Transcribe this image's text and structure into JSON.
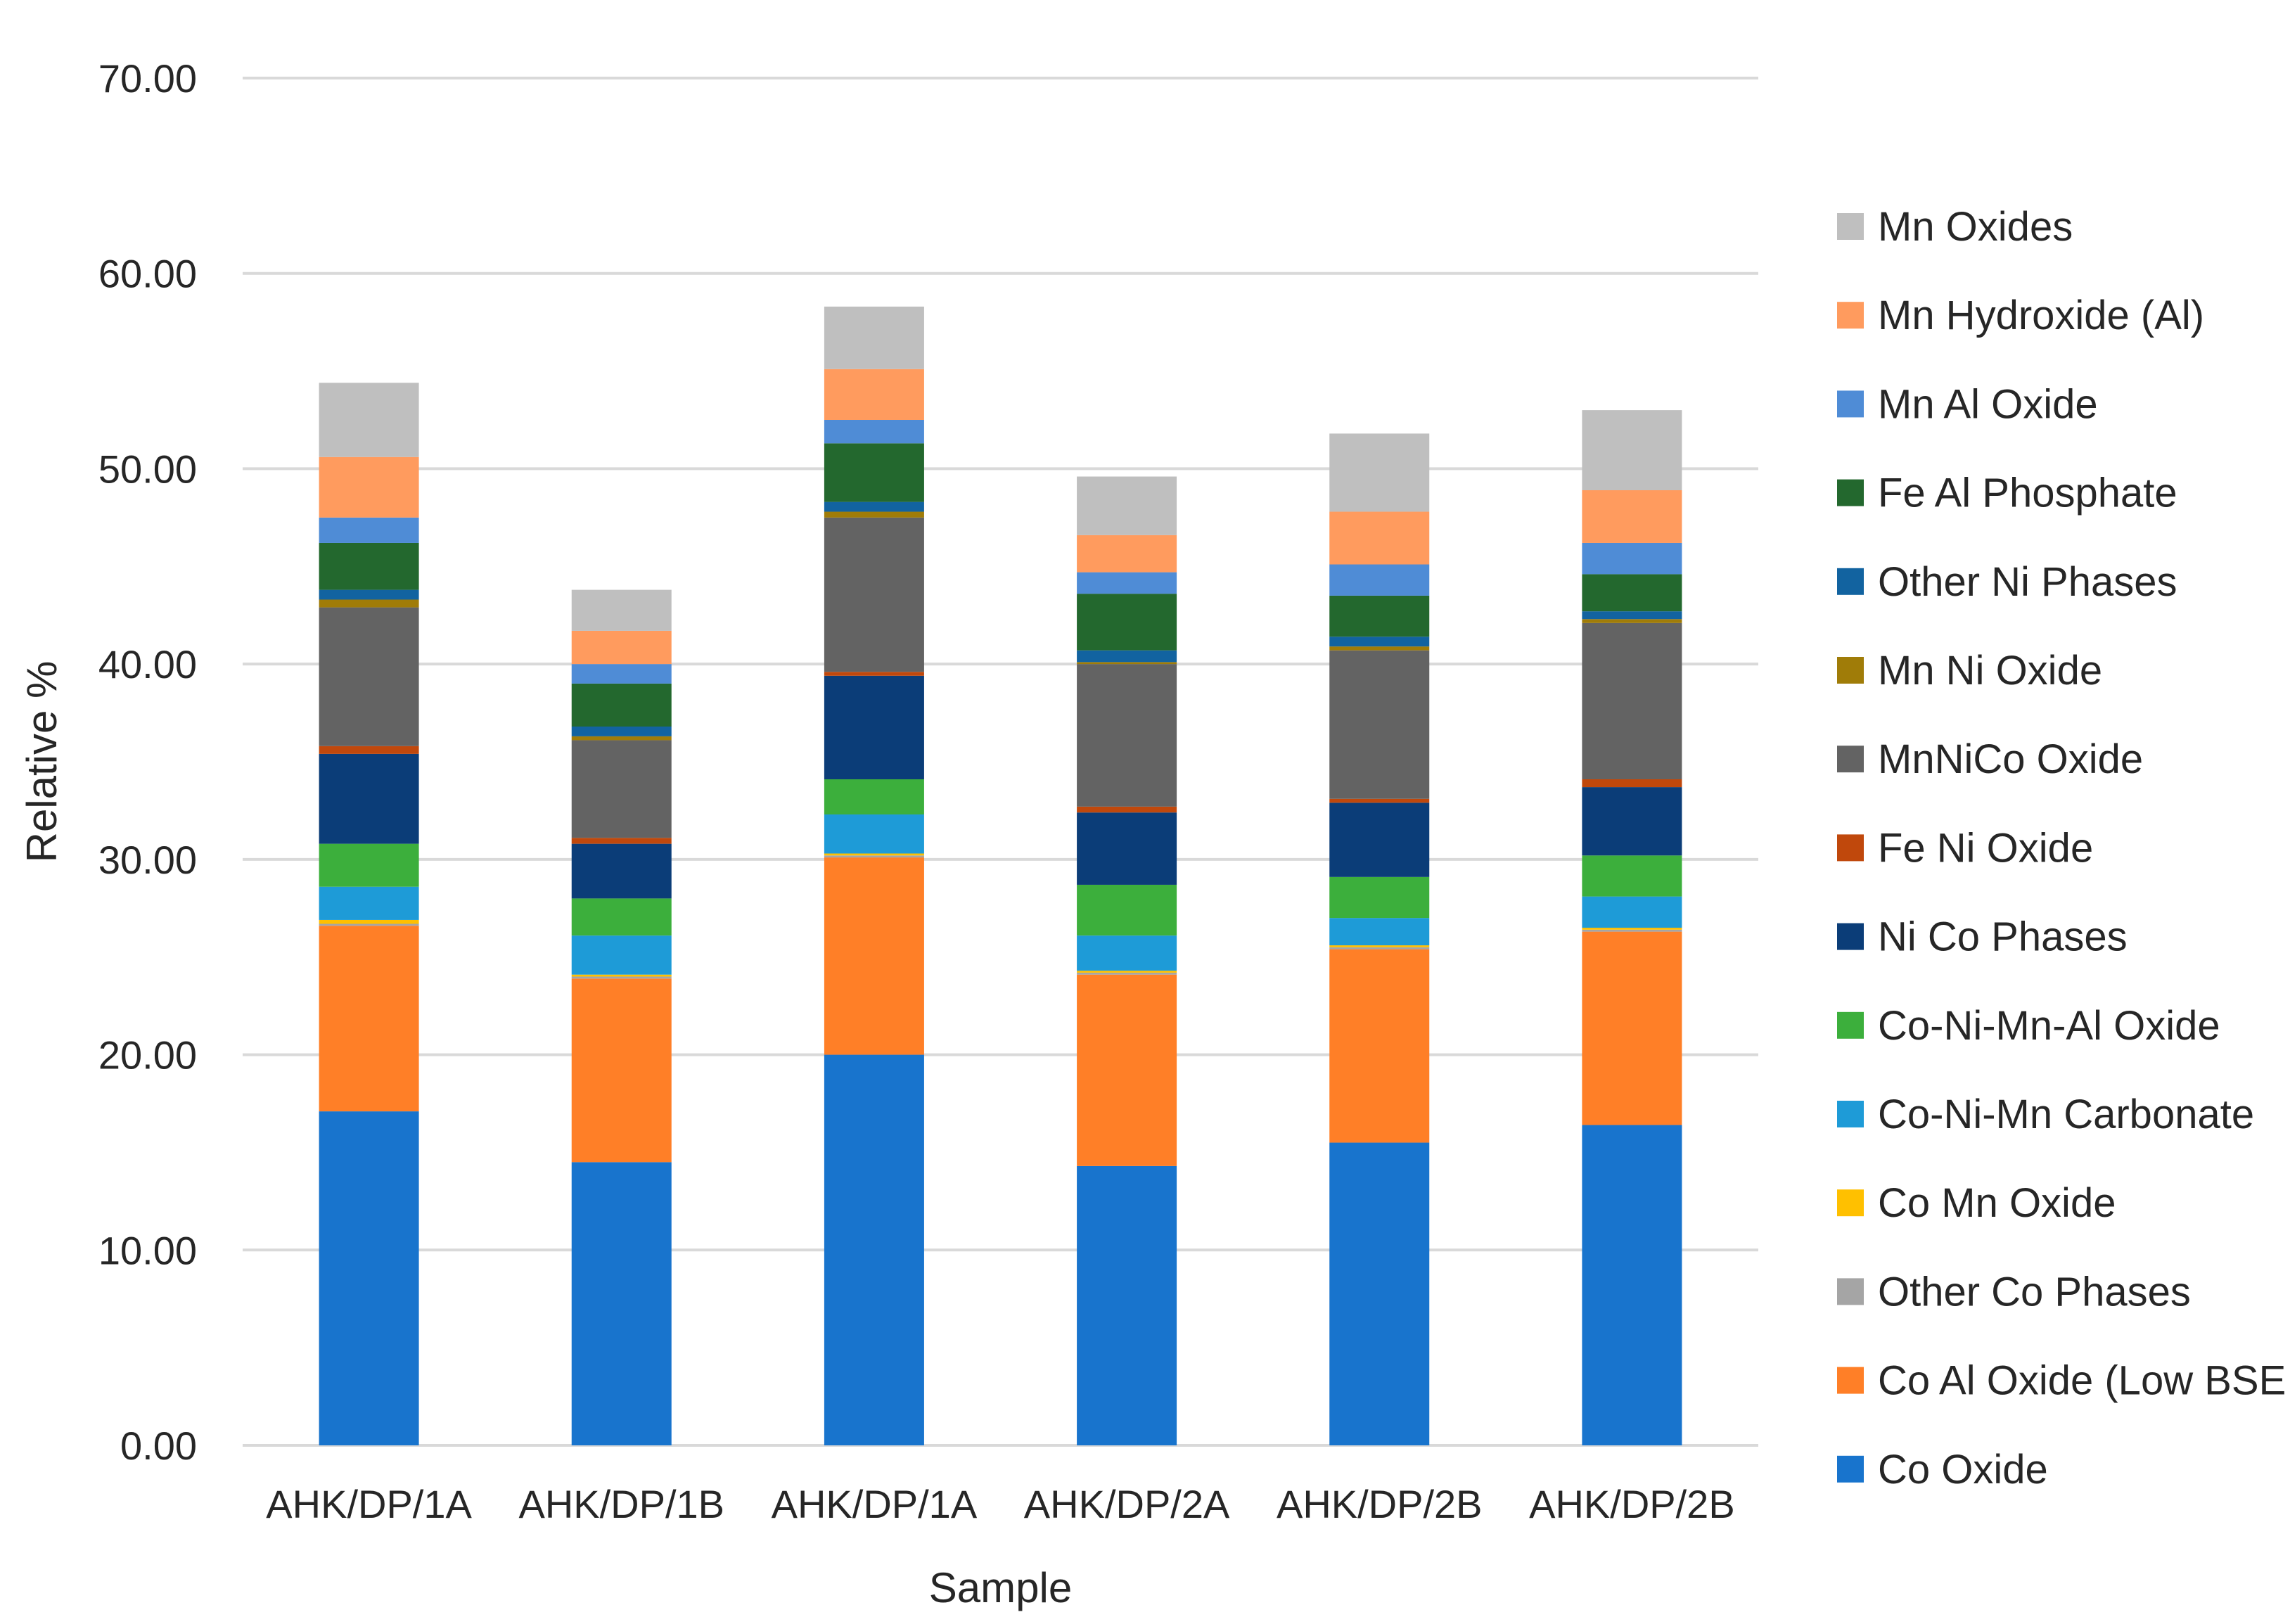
{
  "chart_data": {
    "type": "bar",
    "stacked": true,
    "title": "",
    "xlabel": "Sample",
    "ylabel": "Relative %",
    "ylim": [
      0,
      70
    ],
    "yticks": [
      "0.00",
      "10.00",
      "20.00",
      "30.00",
      "40.00",
      "50.00",
      "60.00",
      "70.00"
    ],
    "grid": true,
    "legend_position": "right",
    "categories": [
      "AHK/DP/1A",
      "AHK/DP/1B",
      "AHK/DP/1A",
      "AHK/DP/2A",
      "AHK/DP/2B",
      "AHK/DP/2B"
    ],
    "series": [
      {
        "name": "Co Oxide",
        "color": "#1874CD",
        "values": [
          17.1,
          14.5,
          20.0,
          14.3,
          15.5,
          16.4
        ]
      },
      {
        "name": "Co Al Oxide (Low BSE",
        "color": "#FF7F27",
        "values": [
          9.5,
          9.4,
          10.1,
          9.8,
          9.9,
          9.9
        ]
      },
      {
        "name": "Other Co Phases",
        "color": "#A5A5A5",
        "values": [
          0.1,
          0.1,
          0.1,
          0.1,
          0.1,
          0.1
        ]
      },
      {
        "name": "Co Mn Oxide",
        "color": "#FFC000",
        "values": [
          0.2,
          0.1,
          0.1,
          0.1,
          0.1,
          0.1
        ]
      },
      {
        "name": "Co-Ni-Mn Carbonate",
        "color": "#1E9BD7",
        "values": [
          1.7,
          2.0,
          2.0,
          1.8,
          1.4,
          1.6
        ]
      },
      {
        "name": "Co-Ni-Mn-Al Oxide",
        "color": "#3CAF3C",
        "values": [
          2.2,
          1.9,
          1.8,
          2.6,
          2.1,
          2.1
        ]
      },
      {
        "name": "Ni Co Phases",
        "color": "#0B3D78",
        "values": [
          4.6,
          2.8,
          5.3,
          3.7,
          3.8,
          3.5
        ]
      },
      {
        "name": "Fe Ni Oxide",
        "color": "#C0480C",
        "values": [
          0.4,
          0.3,
          0.2,
          0.3,
          0.2,
          0.4
        ]
      },
      {
        "name": "MnNiCo Oxide",
        "color": "#636363",
        "values": [
          7.1,
          5.0,
          7.9,
          7.3,
          7.6,
          8.0
        ]
      },
      {
        "name": "Mn Ni Oxide",
        "color": "#A07C08",
        "values": [
          0.4,
          0.2,
          0.3,
          0.1,
          0.2,
          0.2
        ]
      },
      {
        "name": "Other Ni Phases",
        "color": "#1263A0",
        "values": [
          0.5,
          0.5,
          0.5,
          0.6,
          0.5,
          0.4
        ]
      },
      {
        "name": "Fe Al Phosphate",
        "color": "#23682E",
        "values": [
          2.4,
          2.2,
          3.0,
          2.9,
          2.1,
          1.9
        ]
      },
      {
        "name": "Mn Al Oxide",
        "color": "#4F8CD6",
        "values": [
          1.3,
          1.0,
          1.2,
          1.1,
          1.6,
          1.6
        ]
      },
      {
        "name": "Mn Hydroxide (Al)",
        "color": "#FF9B5E",
        "values": [
          3.1,
          1.7,
          2.6,
          1.9,
          2.7,
          2.7
        ]
      },
      {
        "name": "Mn Oxides",
        "color": "#BFBFBF",
        "values": [
          3.8,
          2.1,
          3.2,
          3.0,
          4.0,
          4.1
        ]
      }
    ]
  }
}
